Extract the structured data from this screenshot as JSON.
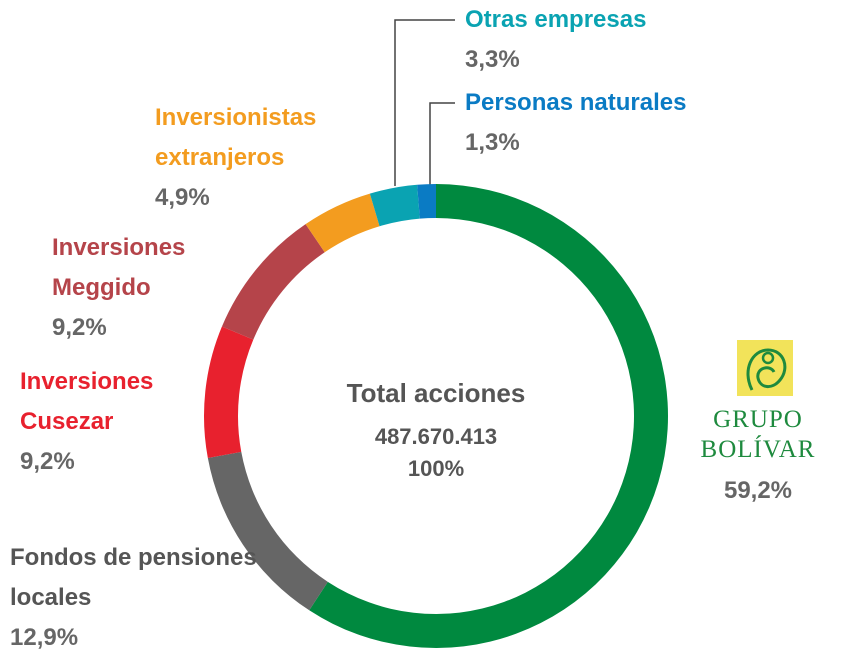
{
  "chart_data": {
    "type": "donut",
    "center": {
      "title": "Total acciones",
      "total": "487.670.413",
      "percent": "100%"
    },
    "categories": [
      "GRUPO BOLÍVAR",
      "Fondos de pensiones locales",
      "Inversiones Cusezar",
      "Inversiones Meggido",
      "Inversionistas extranjeros",
      "Otras empresas",
      "Personas naturales"
    ],
    "values": [
      59.2,
      12.9,
      9.2,
      9.2,
      4.9,
      3.3,
      1.3
    ],
    "value_labels": [
      "59,2%",
      "12,9%",
      "9,2%",
      "9,2%",
      "4,9%",
      "3,3%",
      "1,3%"
    ],
    "colors": [
      "#00893f",
      "#666666",
      "#e8212e",
      "#b5444a",
      "#f39c1f",
      "#0aa3b2",
      "#0a7bc4"
    ]
  }
}
